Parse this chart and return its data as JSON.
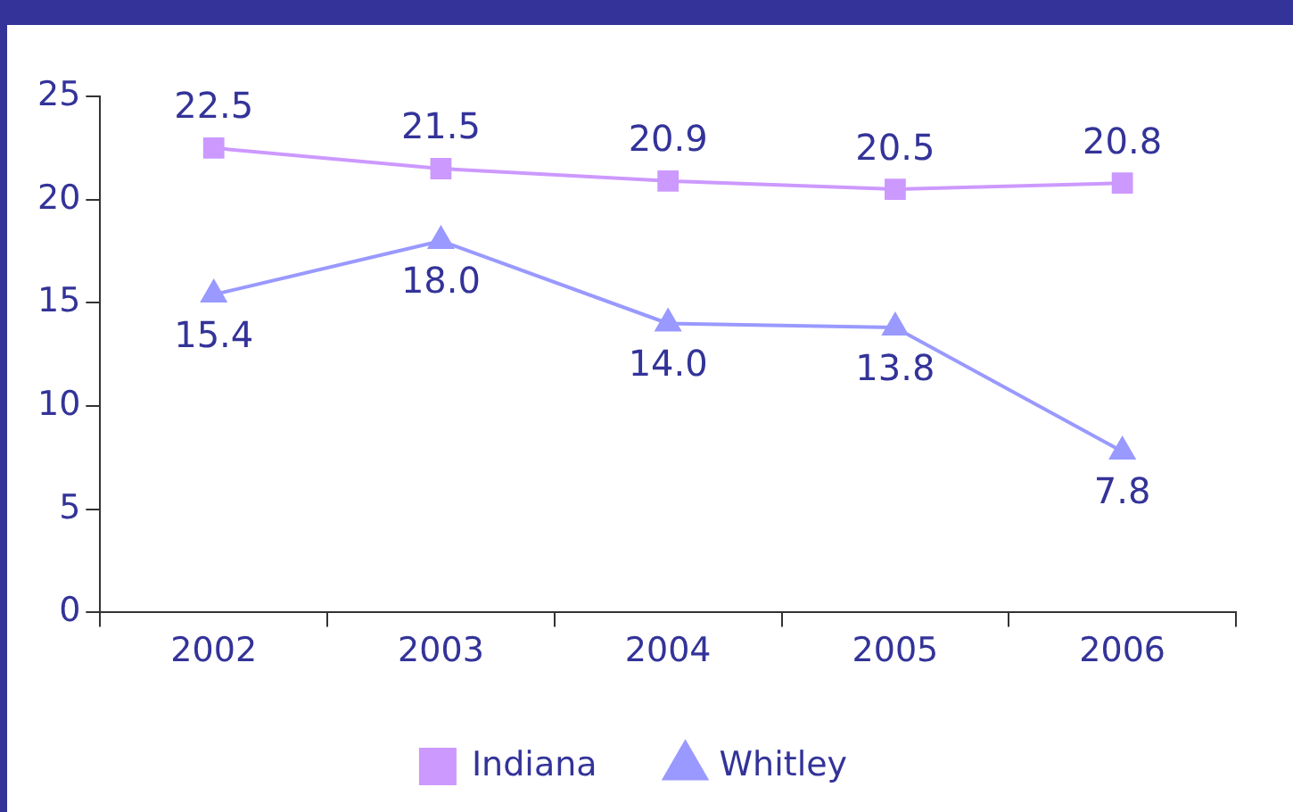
{
  "chart_data": {
    "type": "line",
    "categories": [
      "2002",
      "2003",
      "2004",
      "2005",
      "2006"
    ],
    "series": [
      {
        "name": "Indiana",
        "color": "#cc99ff",
        "marker": "square",
        "values": [
          22.5,
          21.5,
          20.9,
          20.5,
          20.8
        ],
        "value_labels": [
          "22.5",
          "21.5",
          "20.9",
          "20.5",
          "20.8"
        ]
      },
      {
        "name": "Whitley",
        "color": "#9999ff",
        "marker": "triangle",
        "values": [
          15.4,
          18.0,
          14.0,
          13.8,
          7.8
        ],
        "value_labels": [
          "15.4",
          "18.0",
          "14.0",
          "13.8",
          "7.8"
        ]
      }
    ],
    "ylim": [
      0,
      25
    ],
    "yticks": [
      0,
      5,
      10,
      15,
      20,
      25
    ],
    "grid": false,
    "legend": "bottom",
    "line_style": "solid"
  }
}
